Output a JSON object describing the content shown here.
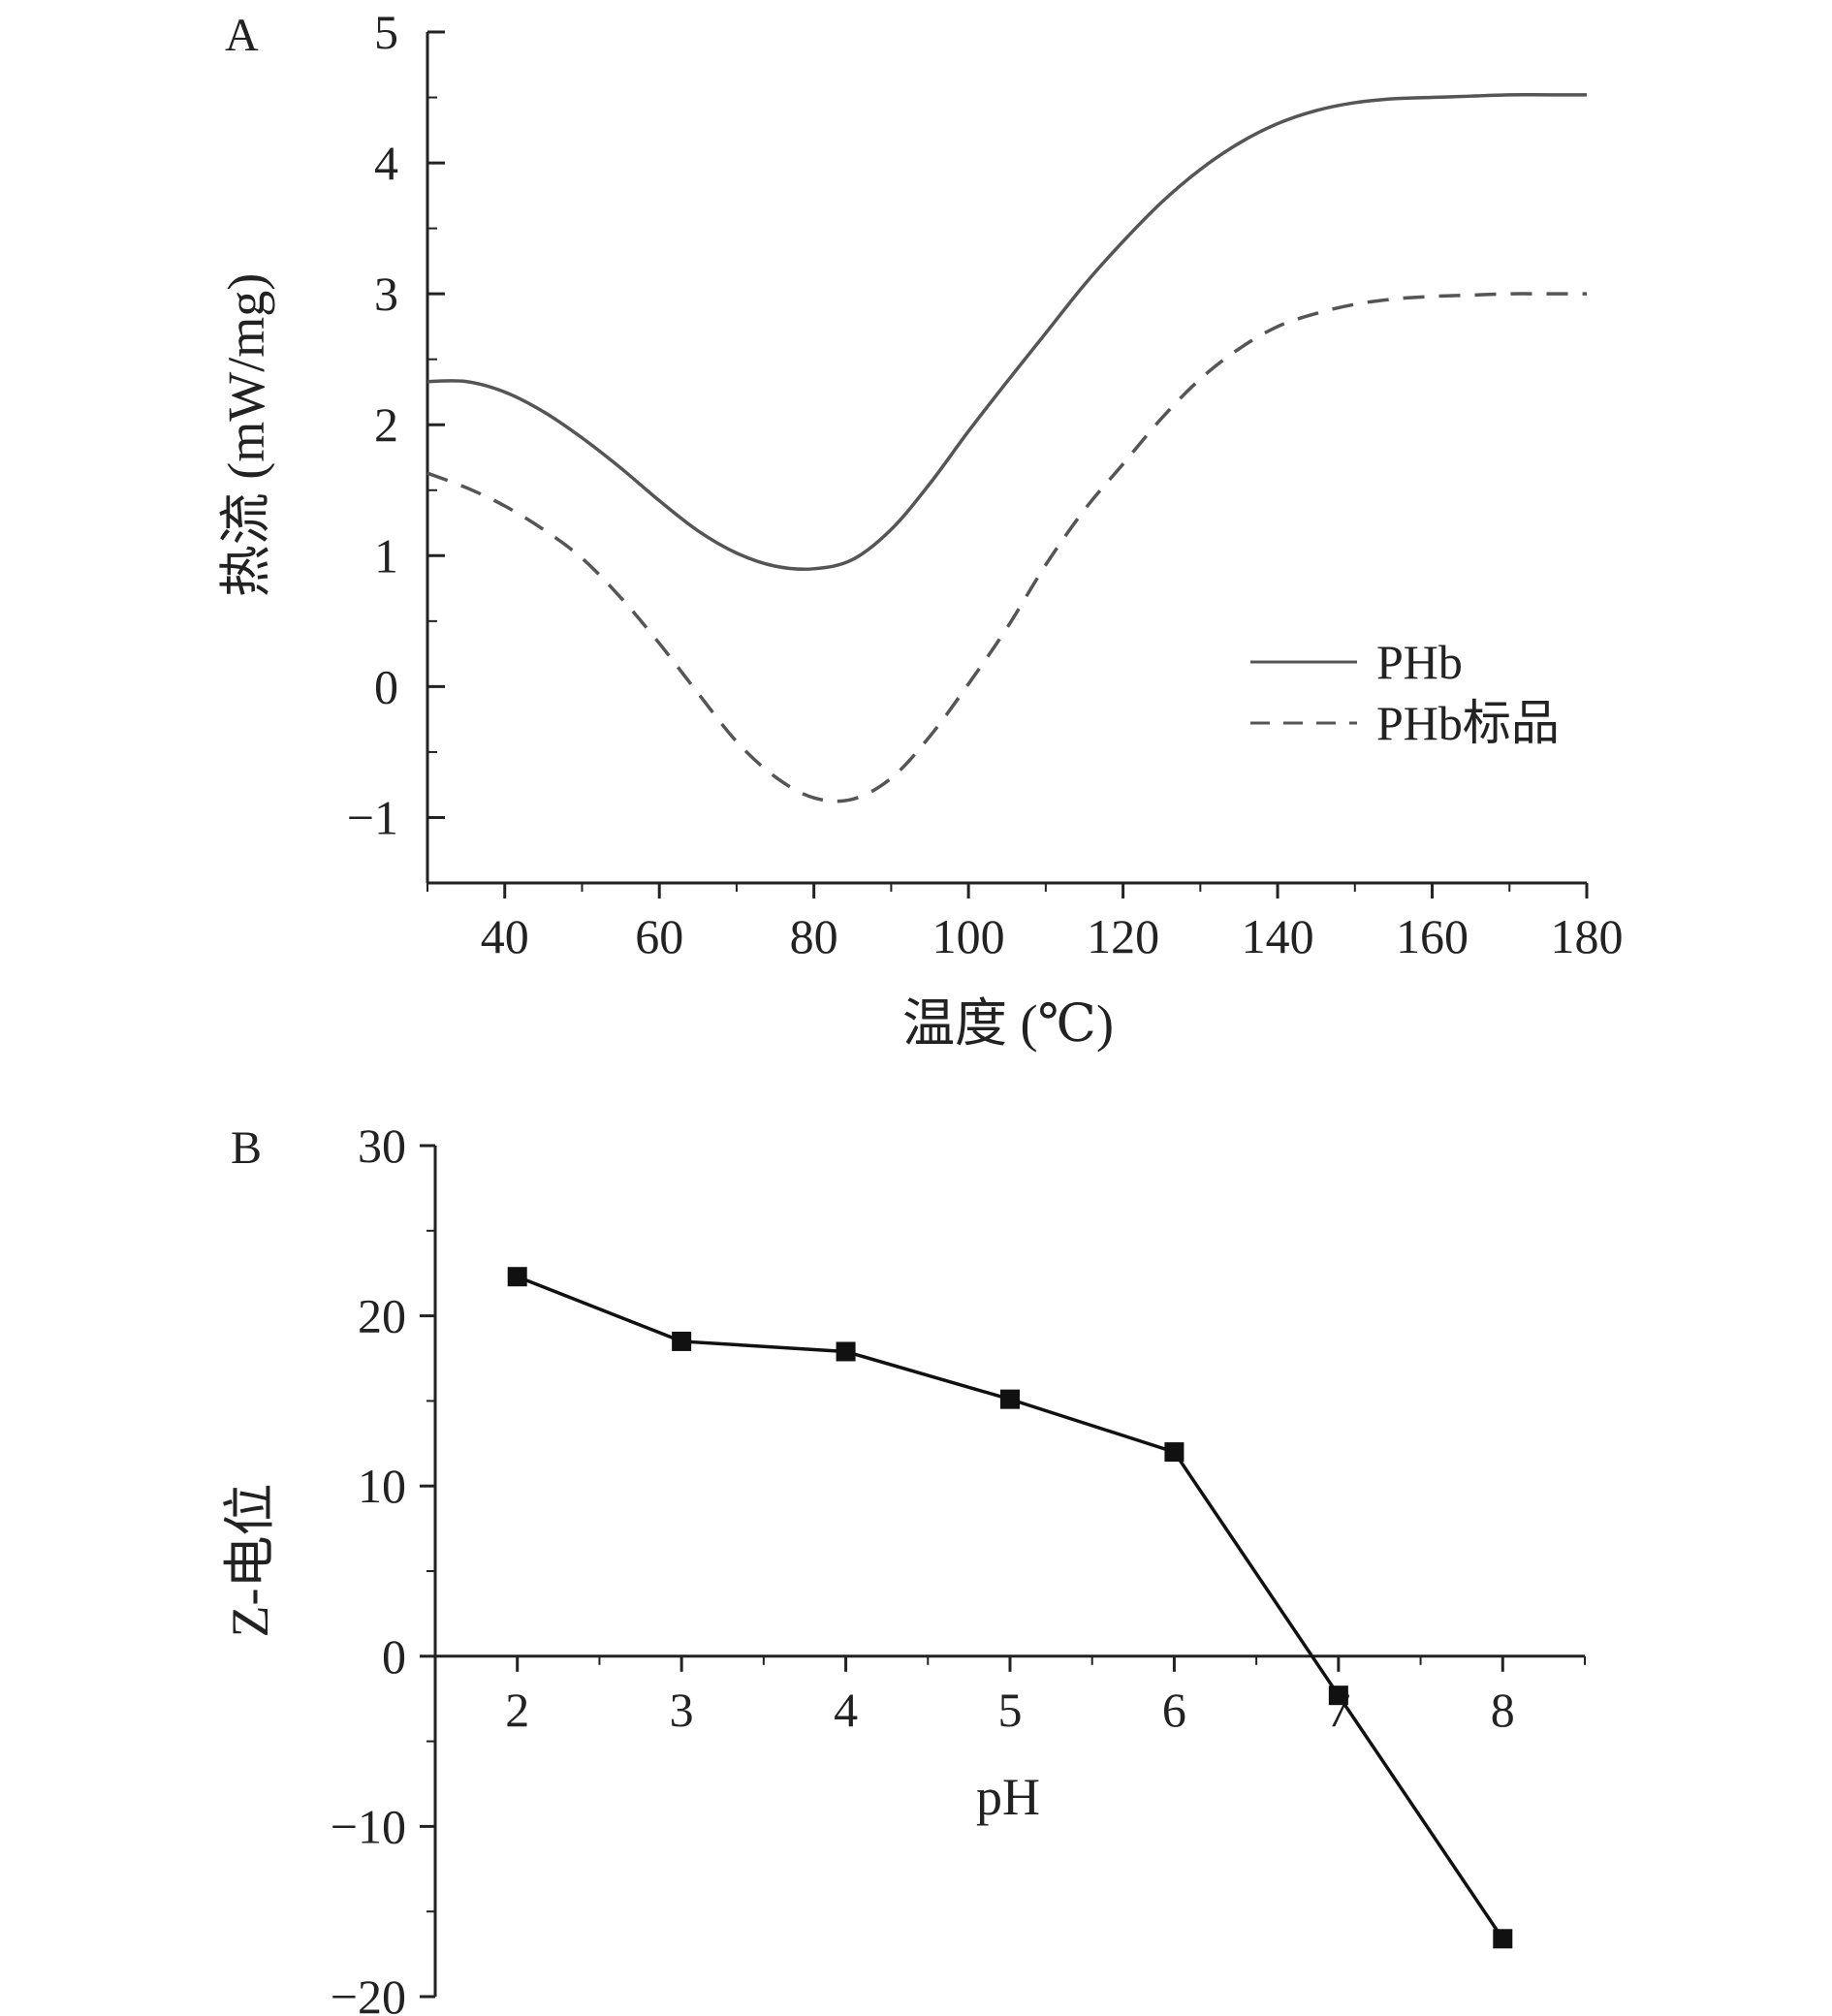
{
  "chart_data": [
    {
      "panel_label": "A",
      "type": "line",
      "xlabel": "温度 (℃)",
      "ylabel": "热流 (mW/mg)",
      "xlim": [
        30,
        180
      ],
      "ylim": [
        -1.5,
        5
      ],
      "xticks": [
        40,
        60,
        80,
        100,
        120,
        140,
        160,
        180
      ],
      "yticks": [
        -1,
        0,
        1,
        2,
        3,
        4,
        5
      ],
      "ytick_labels": [
        "−1",
        "0",
        "1",
        "2",
        "3",
        "4",
        "5"
      ],
      "grid": false,
      "legend_position": "center-right",
      "series": [
        {
          "name": "PHb",
          "style": "solid",
          "color": "#555555",
          "x": [
            30,
            35,
            40,
            45,
            50,
            55,
            60,
            65,
            70,
            75,
            80,
            85,
            90,
            95,
            100,
            105,
            110,
            115,
            120,
            125,
            130,
            135,
            140,
            145,
            150,
            155,
            160,
            165,
            170,
            175,
            180
          ],
          "y": [
            2.33,
            2.33,
            2.25,
            2.1,
            1.9,
            1.67,
            1.42,
            1.19,
            1.02,
            0.92,
            0.9,
            0.97,
            1.2,
            1.55,
            1.95,
            2.33,
            2.7,
            3.07,
            3.4,
            3.7,
            3.95,
            4.15,
            4.3,
            4.4,
            4.46,
            4.49,
            4.5,
            4.51,
            4.52,
            4.52,
            4.52
          ]
        },
        {
          "name": "PHb标品",
          "style": "dashed",
          "color": "#555555",
          "x": [
            30,
            35,
            40,
            45,
            50,
            55,
            60,
            65,
            70,
            75,
            80,
            85,
            90,
            95,
            100,
            105,
            110,
            115,
            120,
            125,
            130,
            135,
            140,
            145,
            150,
            155,
            160,
            165,
            170,
            175,
            180
          ],
          "y": [
            1.63,
            1.52,
            1.38,
            1.2,
            0.98,
            0.68,
            0.33,
            -0.05,
            -0.42,
            -0.69,
            -0.85,
            -0.86,
            -0.7,
            -0.38,
            0.02,
            0.45,
            0.93,
            1.35,
            1.7,
            2.05,
            2.35,
            2.58,
            2.75,
            2.85,
            2.92,
            2.96,
            2.98,
            2.99,
            3.0,
            3.0,
            3.0
          ]
        }
      ]
    },
    {
      "panel_label": "B",
      "type": "line",
      "xlabel": "pH",
      "ylabel": "Z-电位",
      "xlim": [
        1.5,
        8.5
      ],
      "ylim": [
        -20,
        30
      ],
      "xticks": [
        2,
        3,
        4,
        5,
        6,
        7,
        8
      ],
      "yticks": [
        -20,
        -10,
        0,
        10,
        20,
        30
      ],
      "ytick_labels": [
        "−20",
        "−10",
        "0",
        "10",
        "20",
        "30"
      ],
      "grid": false,
      "marker": "square",
      "series": [
        {
          "color": "#111111",
          "x": [
            2,
            3,
            4,
            5,
            6,
            7,
            8
          ],
          "y": [
            22.3,
            18.5,
            17.9,
            15.1,
            12.0,
            -2.3,
            -16.6
          ]
        }
      ]
    }
  ]
}
